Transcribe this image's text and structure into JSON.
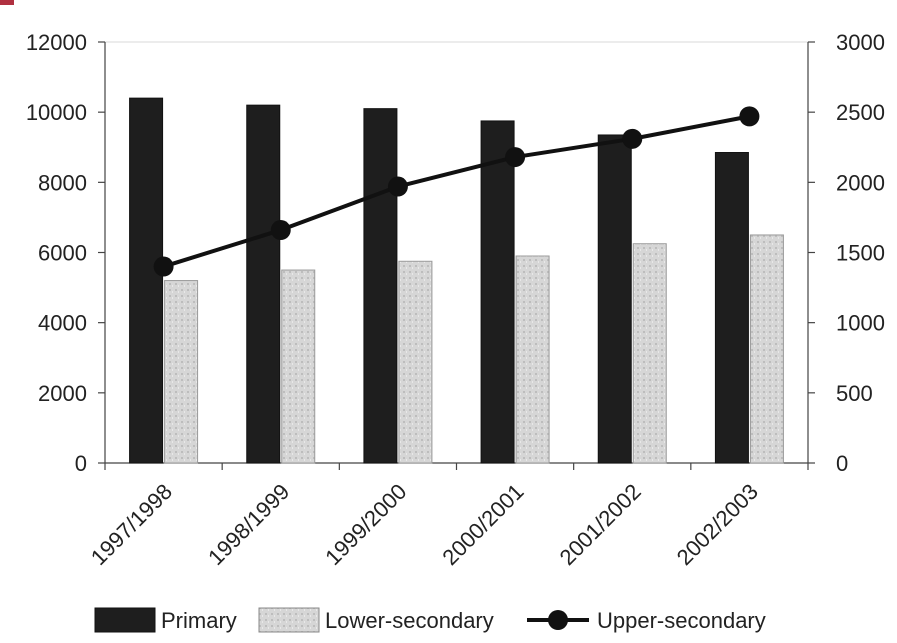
{
  "chart_data": {
    "type": "bar",
    "categories": [
      "1997/1998",
      "1998/1999",
      "1999/2000",
      "2000/2001",
      "2001/2002",
      "2002/2003"
    ],
    "series": [
      {
        "name": "Primary",
        "type": "bar",
        "axis": "left",
        "values": [
          10400,
          10200,
          10100,
          9750,
          9350,
          8850
        ],
        "color": "#1e1e1e"
      },
      {
        "name": "Lower-secondary",
        "type": "bar",
        "axis": "left",
        "values": [
          5200,
          5500,
          5750,
          5900,
          6250,
          6500
        ],
        "color": "#cfcfcf"
      },
      {
        "name": "Upper-secondary",
        "type": "line",
        "axis": "right",
        "values": [
          1400,
          1660,
          1970,
          2180,
          2310,
          2470
        ],
        "color": "#111111"
      }
    ],
    "y_left": {
      "ticks": [
        "0",
        "2000",
        "4000",
        "6000",
        "8000",
        "10000",
        "12000"
      ],
      "lim": [
        0,
        12000
      ]
    },
    "y_right": {
      "ticks": [
        "0",
        "500",
        "1000",
        "1500",
        "2000",
        "2500",
        "3000"
      ],
      "lim": [
        0,
        3000
      ]
    },
    "grid": false,
    "legend": {
      "position": "bottom"
    }
  }
}
